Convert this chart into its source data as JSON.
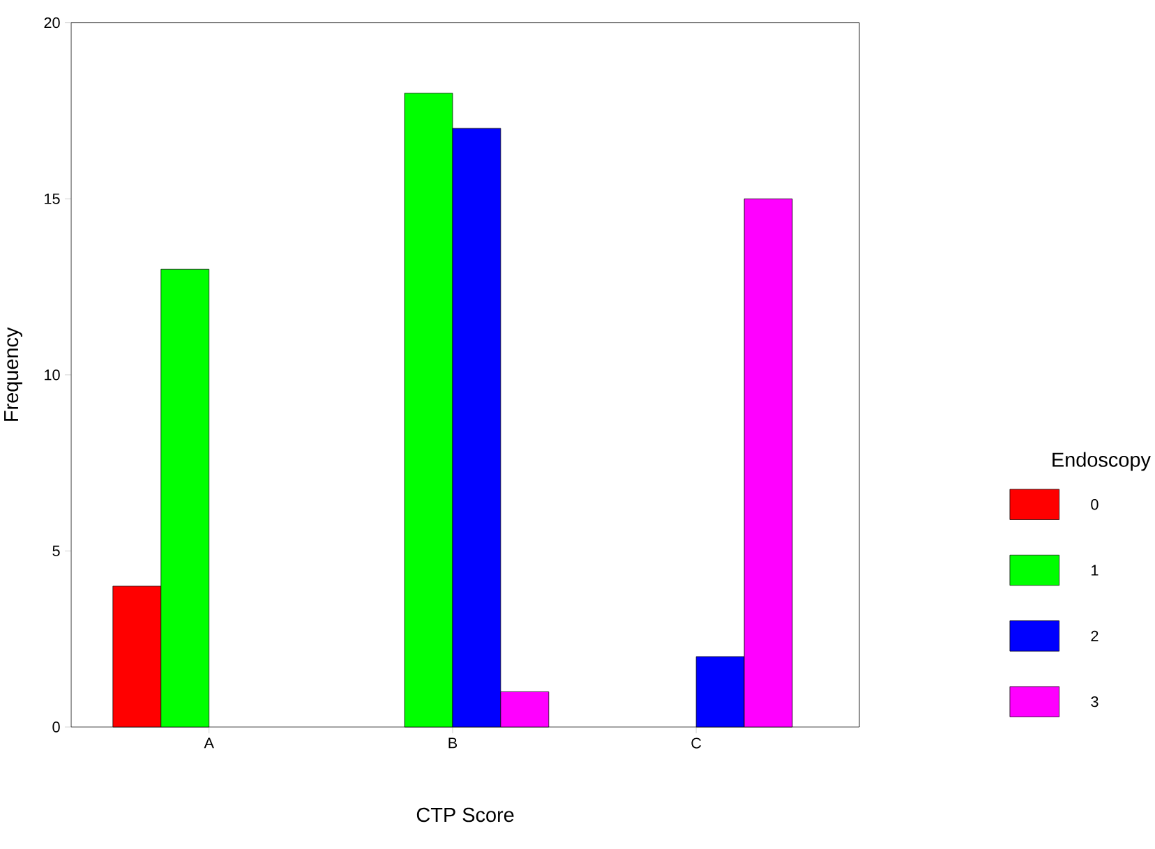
{
  "chart_data": {
    "type": "bar",
    "xlabel": "CTP Score",
    "ylabel": "Frequency",
    "legend_title": "Endoscopy",
    "legend": "right",
    "grid": false,
    "categories": [
      "A",
      "B",
      "C"
    ],
    "series": [
      {
        "name": "0",
        "color": "#ff0000",
        "values": [
          4,
          null,
          null
        ]
      },
      {
        "name": "1",
        "color": "#00ff00",
        "values": [
          13,
          18,
          null
        ]
      },
      {
        "name": "2",
        "color": "#0000ff",
        "values": [
          null,
          17,
          2
        ]
      },
      {
        "name": "3",
        "color": "#ff00ff",
        "values": [
          null,
          1,
          15
        ]
      }
    ],
    "ylim": [
      0,
      20
    ],
    "yticks": [
      0,
      5,
      10,
      15,
      20
    ]
  }
}
